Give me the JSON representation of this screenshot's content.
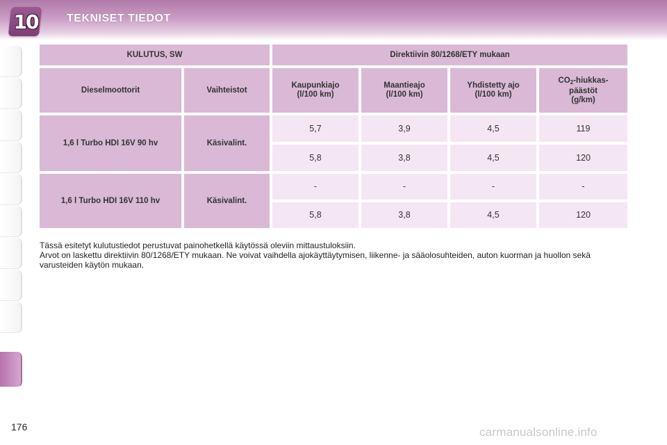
{
  "header": {
    "chapter_number": "10",
    "title": "TEKNISET TIEDOT"
  },
  "table": {
    "group_header_left": "KULUTUS, SW",
    "group_header_right": "Direktiivin 80/1268/ETY mukaan",
    "col_engine": "Dieselmoottorit",
    "col_gearbox": "Vaihteistot",
    "col_city_1": "Kaupunkiajo",
    "col_city_2": "(l/100 km)",
    "col_highway_1": "Maantieajo",
    "col_highway_2": "(l/100 km)",
    "col_combined_1": "Yhdistetty ajo",
    "col_combined_2": "(l/100 km)",
    "col_co2_prefix": "CO",
    "col_co2_sub": "2",
    "col_co2_suffix": "-hiukkas-",
    "col_co2_2": "päästöt",
    "col_co2_3": "(g/km)",
    "rows": [
      {
        "engine": "1,6 l Turbo HDI 16V 90 hv",
        "gearbox": "Käsivalint.",
        "values": [
          [
            "5,7",
            "3,9",
            "4,5",
            "119"
          ],
          [
            "5,8",
            "3,8",
            "4,5",
            "120"
          ]
        ]
      },
      {
        "engine": "1,6 l Turbo HDI 16V 110 hv",
        "gearbox": "Käsivalint.",
        "values": [
          [
            "-",
            "-",
            "-",
            "-"
          ],
          [
            "5,8",
            "3,8",
            "4,5",
            "120"
          ]
        ]
      }
    ]
  },
  "notes": {
    "line1": "Tässä esitetyt kulutustiedot perustuvat painohetkellä käytössä oleviin mittaustuloksiin.",
    "line2": "Arvot on laskettu direktiivin 80/1268/ETY mukaan. Ne voivat vaihdella ajokäyttäytymisen, liikenne- ja sääolosuhteiden, auton kuorman ja huollon sekä varusteiden käytön mukaan."
  },
  "page_number": "176",
  "watermark": "carmanualsonline.info"
}
